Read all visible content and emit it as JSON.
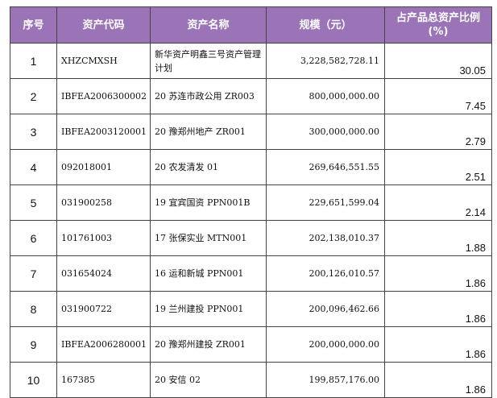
{
  "header": {
    "no": "序号",
    "code": "资产代码",
    "name": "资产名称",
    "amount": "规模（元）",
    "ratio_line1": "占产品总资产比例",
    "ratio_line2": "(%)"
  },
  "rows": [
    {
      "no": "1",
      "code": "XHZCMXSH",
      "name": "新华资产明鑫三号资产管理计划",
      "amount": "3,228,582,728.11",
      "ratio": "30.05"
    },
    {
      "no": "2",
      "code": "IBFEA2006300002",
      "name": "20 苏连市政公用 ZR003",
      "amount": "800,000,000.00",
      "ratio": "7.45"
    },
    {
      "no": "3",
      "code": "IBFEA2003120001",
      "name": "20 豫郑州地产 ZR001",
      "amount": "300,000,000.00",
      "ratio": "2.79"
    },
    {
      "no": "4",
      "code": "092018001",
      "name": "20 农发清发 01",
      "amount": "269,646,551.55",
      "ratio": "2.51"
    },
    {
      "no": "5",
      "code": "031900258",
      "name": "19 宜宾国资 PPN001B",
      "amount": "229,651,599.04",
      "ratio": "2.14"
    },
    {
      "no": "6",
      "code": "101761003",
      "name": "17 张保实业 MTN001",
      "amount": "202,138,010.37",
      "ratio": "1.88"
    },
    {
      "no": "7",
      "code": "031654024",
      "name": "16 运和新城 PPN001",
      "amount": "200,126,010.57",
      "ratio": "1.86"
    },
    {
      "no": "8",
      "code": "031900722",
      "name": "19 兰州建投 PPN001",
      "amount": "200,096,462.66",
      "ratio": "1.86"
    },
    {
      "no": "9",
      "code": "IBFEA2006280001",
      "name": "20 豫郑州建投 ZR001",
      "amount": "200,000,000.00",
      "ratio": "1.86"
    },
    {
      "no": "10",
      "code": "167385",
      "name": "20 安信 02",
      "amount": "199,857,176.00",
      "ratio": "1.86"
    }
  ]
}
